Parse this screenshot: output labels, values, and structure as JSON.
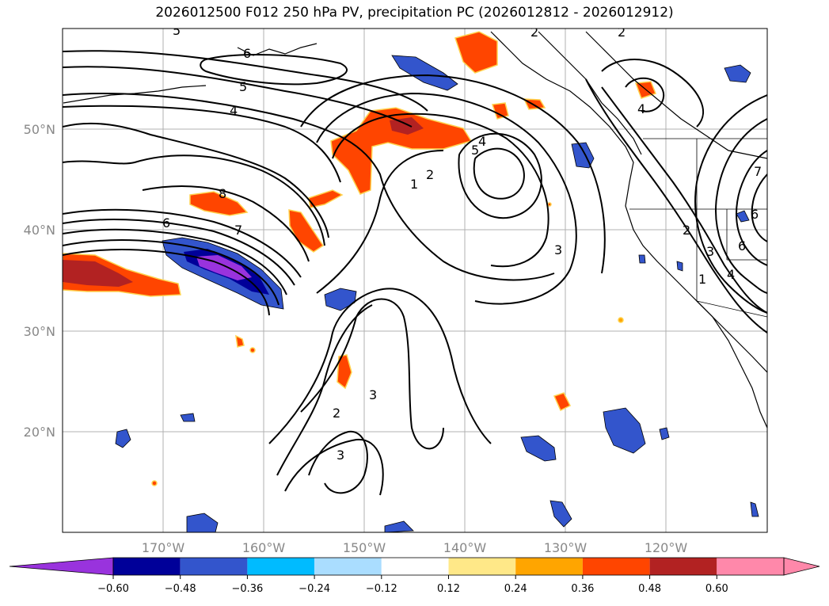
{
  "title": "2026012500 F012 250 hPa PV, precipitation PC (2026012812 - 2026012912)",
  "map": {
    "lat_labels": [
      "50°N",
      "40°N",
      "30°N",
      "20°N"
    ],
    "lon_labels": [
      "170°W",
      "160°W",
      "150°W",
      "140°W",
      "130°W",
      "120°W"
    ],
    "extent": {
      "lon": [
        -180,
        -110
      ],
      "lat": [
        10,
        60
      ]
    }
  },
  "contour_labels": [
    "5",
    "6",
    "5",
    "4",
    "8",
    "6",
    "7",
    "2",
    "1",
    "5",
    "4",
    "3",
    "3",
    "2",
    "3",
    "2",
    "2",
    "4",
    "2",
    "3",
    "1",
    "6",
    "4",
    "6",
    "7"
  ],
  "colorbar": {
    "ticks": [
      "−0.60",
      "−0.48",
      "−0.36",
      "−0.24",
      "−0.12",
      "0.12",
      "0.24",
      "0.36",
      "0.48",
      "0.60"
    ],
    "colors": [
      "#9933dd",
      "#000099",
      "#3355cc",
      "#00bbff",
      "#aaddff",
      "#ffffff",
      "#ffe888",
      "#ffa500",
      "#ff4500",
      "#b22222",
      "#ff88aa",
      "#ff88aa"
    ]
  }
}
